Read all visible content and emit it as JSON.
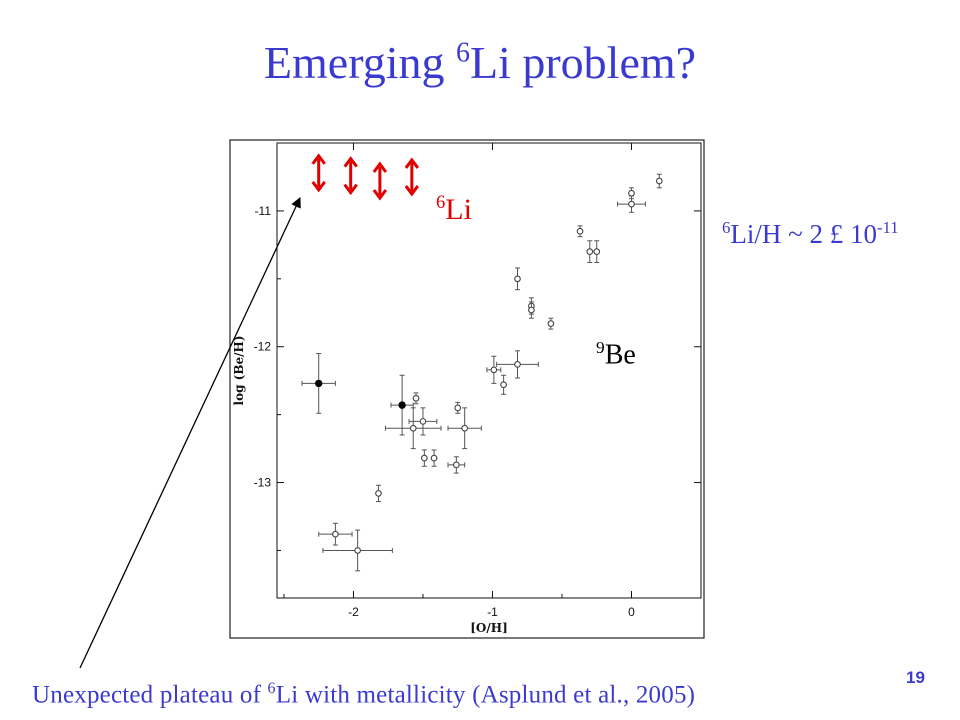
{
  "slide": {
    "title_main": "Emerging ",
    "title_sup": "6",
    "title_rest": "Li problem?",
    "li_label_sup": "6",
    "li_label_text": "Li",
    "be_label_sup": "9",
    "be_label_text": "Be",
    "ratio_sup1": "6",
    "ratio_text": "Li/H ~ 2 £ 10",
    "ratio_sup2": "-11",
    "caption_pre": "Unexpected plateau of ",
    "caption_sup": "6",
    "caption_post": "Li with metallicity (Asplund et al., 2005)",
    "page_number": "19"
  },
  "chart_data": {
    "type": "scatter",
    "xlabel": "[O/H]",
    "ylabel": "log (Be/H)",
    "xlim": [
      -2.55,
      0.5
    ],
    "ylim": [
      -13.85,
      -10.5
    ],
    "xticks": [
      -2,
      -1,
      0
    ],
    "yticks": [
      -11,
      -12,
      -13
    ],
    "series": [
      {
        "marker": "open-circle",
        "points": [
          {
            "x": 0.2,
            "y": -10.78,
            "yerr": 0.05
          },
          {
            "x": 0.0,
            "y": -10.95,
            "xerr": 0.1,
            "yerr": 0.06
          },
          {
            "x": 0.0,
            "y": -10.87,
            "yerr": 0.04
          },
          {
            "x": -0.37,
            "y": -11.15,
            "yerr": 0.04
          },
          {
            "x": -0.3,
            "y": -11.3,
            "yerr": 0.08
          },
          {
            "x": -0.25,
            "y": -11.3,
            "yerr": 0.08
          },
          {
            "x": -0.82,
            "y": -11.5,
            "yerr": 0.08
          },
          {
            "x": -0.72,
            "y": -11.7,
            "yerr": 0.06
          },
          {
            "x": -0.72,
            "y": -11.73,
            "yerr": 0.06
          },
          {
            "x": -0.58,
            "y": -11.83,
            "yerr": 0.04
          },
          {
            "x": -0.99,
            "y": -12.17,
            "xerr": 0.05,
            "yerr": 0.1
          },
          {
            "x": -0.92,
            "y": -12.28,
            "yerr": 0.07
          },
          {
            "x": -0.82,
            "y": -12.13,
            "xerr": 0.15,
            "yerr": 0.1
          },
          {
            "x": -1.25,
            "y": -12.45,
            "yerr": 0.04
          },
          {
            "x": -1.2,
            "y": -12.6,
            "xerr": 0.12,
            "yerr": 0.15
          },
          {
            "x": -1.5,
            "y": -12.55,
            "xerr": 0.1,
            "yerr": 0.1
          },
          {
            "x": -1.57,
            "y": -12.6,
            "xerr": 0.2,
            "yerr": 0.15
          },
          {
            "x": -1.55,
            "y": -12.38,
            "yerr": 0.04
          },
          {
            "x": -1.49,
            "y": -12.82,
            "yerr": 0.06
          },
          {
            "x": -1.42,
            "y": -12.82,
            "yerr": 0.06
          },
          {
            "x": -1.26,
            "y": -12.87,
            "xerr": 0.06,
            "yerr": 0.06
          },
          {
            "x": -1.82,
            "y": -13.08,
            "yerr": 0.06
          },
          {
            "x": -2.13,
            "y": -13.38,
            "xerr": 0.12,
            "yerr": 0.08
          },
          {
            "x": -1.97,
            "y": -13.5,
            "xerr": 0.25,
            "yerr": 0.15
          }
        ]
      },
      {
        "marker": "filled-circle",
        "points": [
          {
            "x": -2.25,
            "y": -12.27,
            "xerr": 0.12,
            "yerr": 0.22
          },
          {
            "x": -1.65,
            "y": -12.43,
            "xerr": 0.08,
            "yerr": 0.22
          }
        ]
      },
      {
        "name": "6Li",
        "marker": "red-double-arrow",
        "points": [
          {
            "x": -2.25,
            "y": -10.72
          },
          {
            "x": -2.02,
            "y": -10.74
          },
          {
            "x": -1.81,
            "y": -10.78
          },
          {
            "x": -1.58,
            "y": -10.75
          }
        ]
      }
    ],
    "colors": {
      "li_arrows": "#e00000",
      "text_accent": "#3a3ad0"
    }
  }
}
